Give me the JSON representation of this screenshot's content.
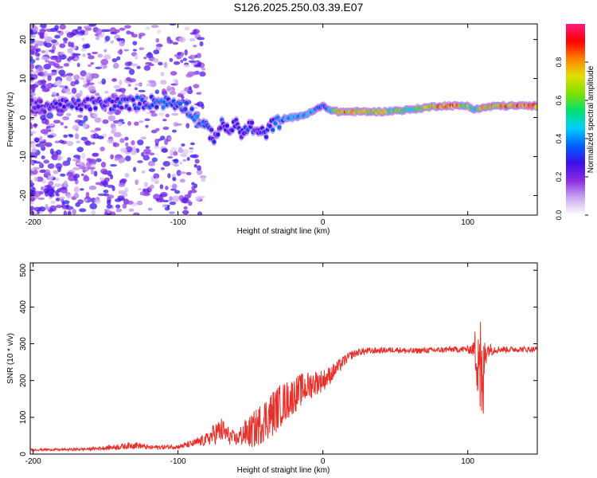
{
  "title": "S126.2025.250.03.39.E07",
  "chart_data": [
    {
      "type": "heatmap",
      "xlabel": "Height of straight line (km)",
      "ylabel": "Frequency (Hz)",
      "xlim": [
        -202,
        148
      ],
      "ylim": [
        -25,
        24
      ],
      "xticks": [
        -200,
        -100,
        0,
        100
      ],
      "yticks": [
        -20,
        -10,
        0,
        10,
        20
      ],
      "colorbar": {
        "label": "Normalized spectral amplitude",
        "range": [
          0,
          1
        ],
        "ticks": [
          "0.0",
          "0.2",
          "0.4",
          "0.6",
          "0.8"
        ],
        "colors": [
          "#ffffff",
          "#c9a8f0",
          "#8a2be2",
          "#3a10e8",
          "#0060ff",
          "#00d0ff",
          "#00e070",
          "#80e000",
          "#e0e000",
          "#ff8000",
          "#ff0000",
          "#ff1a80"
        ]
      },
      "ridge": {
        "x": [
          -200,
          -180,
          -160,
          -140,
          -120,
          -110,
          -100,
          -95,
          -90,
          -85,
          -80,
          -75,
          -70,
          -65,
          -60,
          -55,
          -50,
          -45,
          -40,
          -35,
          -30,
          -25,
          -20,
          -15,
          -10,
          -5,
          0,
          5,
          10,
          20,
          40,
          60,
          80,
          90,
          100,
          105,
          110,
          120,
          140,
          148
        ],
        "y": [
          3,
          3,
          3.5,
          3.5,
          4,
          4,
          3.5,
          3,
          1,
          -1,
          -3,
          -5,
          -2,
          -3,
          -2,
          -4,
          -2,
          -4,
          -4,
          -2,
          -1,
          0,
          0,
          0.5,
          1,
          2,
          3,
          2,
          1.5,
          1.5,
          1.5,
          2,
          3,
          3,
          3,
          2,
          2.5,
          3,
          3,
          3
        ],
        "amp": [
          0.25,
          0.3,
          0.3,
          0.35,
          0.35,
          0.4,
          0.35,
          0.35,
          0.4,
          0.4,
          0.35,
          0.3,
          0.35,
          0.3,
          0.35,
          0.3,
          0.35,
          0.3,
          0.3,
          0.35,
          0.4,
          0.45,
          0.45,
          0.5,
          0.5,
          0.45,
          0.4,
          0.45,
          0.85,
          0.85,
          0.75,
          0.6,
          0.85,
          0.9,
          0.7,
          0.55,
          0.8,
          0.85,
          0.9,
          0.9
        ]
      }
    },
    {
      "type": "line",
      "xlabel": "Height of straight line (km)",
      "ylabel": "SNR (10 * v/v)",
      "xlim": [
        -202,
        148
      ],
      "ylim": [
        0,
        520
      ],
      "xticks": [
        -200,
        -100,
        0,
        100
      ],
      "yticks": [
        0,
        100,
        200,
        300,
        400,
        500
      ],
      "series": [
        {
          "name": "SNR",
          "color": "#e8302a",
          "x": [
            -202,
            -190,
            -180,
            -160,
            -140,
            -130,
            -120,
            -100,
            -90,
            -80,
            -75,
            -70,
            -65,
            -60,
            -55,
            -50,
            -45,
            -40,
            -35,
            -30,
            -25,
            -20,
            -15,
            -10,
            -5,
            0,
            5,
            10,
            15,
            20,
            25,
            30,
            40,
            50,
            60,
            70,
            80,
            90,
            100,
            104,
            106,
            108,
            110,
            112,
            114,
            120,
            130,
            140,
            148
          ],
          "y": [
            12,
            12,
            12,
            14,
            20,
            25,
            18,
            20,
            28,
            40,
            55,
            65,
            50,
            40,
            55,
            60,
            75,
            95,
            110,
            130,
            145,
            160,
            175,
            185,
            195,
            200,
            215,
            235,
            255,
            270,
            278,
            280,
            282,
            284,
            280,
            282,
            283,
            285,
            285,
            285,
            280,
            300,
            120,
            290,
            285,
            285,
            285,
            285,
            285
          ],
          "noise": [
            3,
            3,
            3,
            4,
            8,
            10,
            6,
            6,
            10,
            18,
            30,
            35,
            25,
            18,
            35,
            45,
            55,
            60,
            65,
            60,
            55,
            50,
            45,
            40,
            35,
            30,
            25,
            20,
            15,
            12,
            10,
            10,
            8,
            8,
            8,
            8,
            8,
            8,
            10,
            20,
            100,
            200,
            160,
            60,
            20,
            10,
            8,
            8,
            8
          ]
        }
      ]
    }
  ]
}
